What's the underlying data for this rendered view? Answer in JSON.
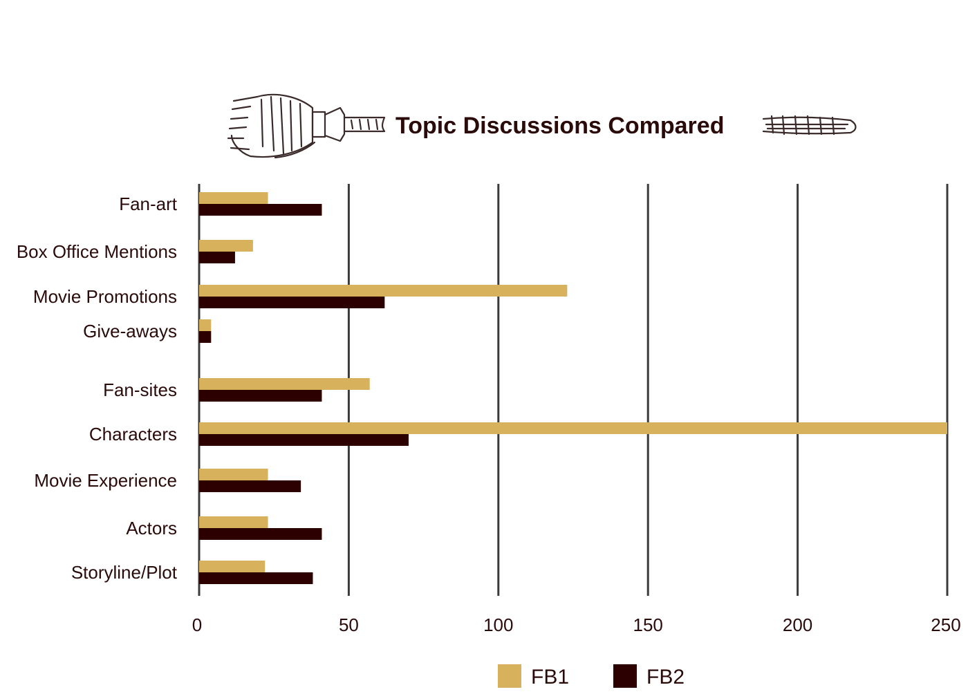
{
  "chart_data": {
    "type": "bar",
    "orientation": "horizontal",
    "title": "Topic Discussions Compared",
    "categories": [
      "Fan-art",
      "Box Office Mentions",
      "Movie Promotions",
      "Give-aways",
      "Fan-sites",
      "Characters",
      "Movie Experience",
      "Actors",
      "Storyline/Plot"
    ],
    "series": [
      {
        "name": "FB1",
        "color": "#d8b15d",
        "values": [
          23,
          18,
          123,
          4,
          57,
          250,
          23,
          23,
          22
        ]
      },
      {
        "name": "FB2",
        "color": "#2d0000",
        "values": [
          41,
          12,
          62,
          4,
          41,
          70,
          34,
          41,
          38
        ]
      }
    ],
    "xlim": [
      0,
      250
    ],
    "xticks": [
      "0",
      "50",
      "100",
      "150",
      "200",
      "250"
    ],
    "grid": true,
    "legend": "bottom-center",
    "decoration": "paintbrush-icon"
  }
}
